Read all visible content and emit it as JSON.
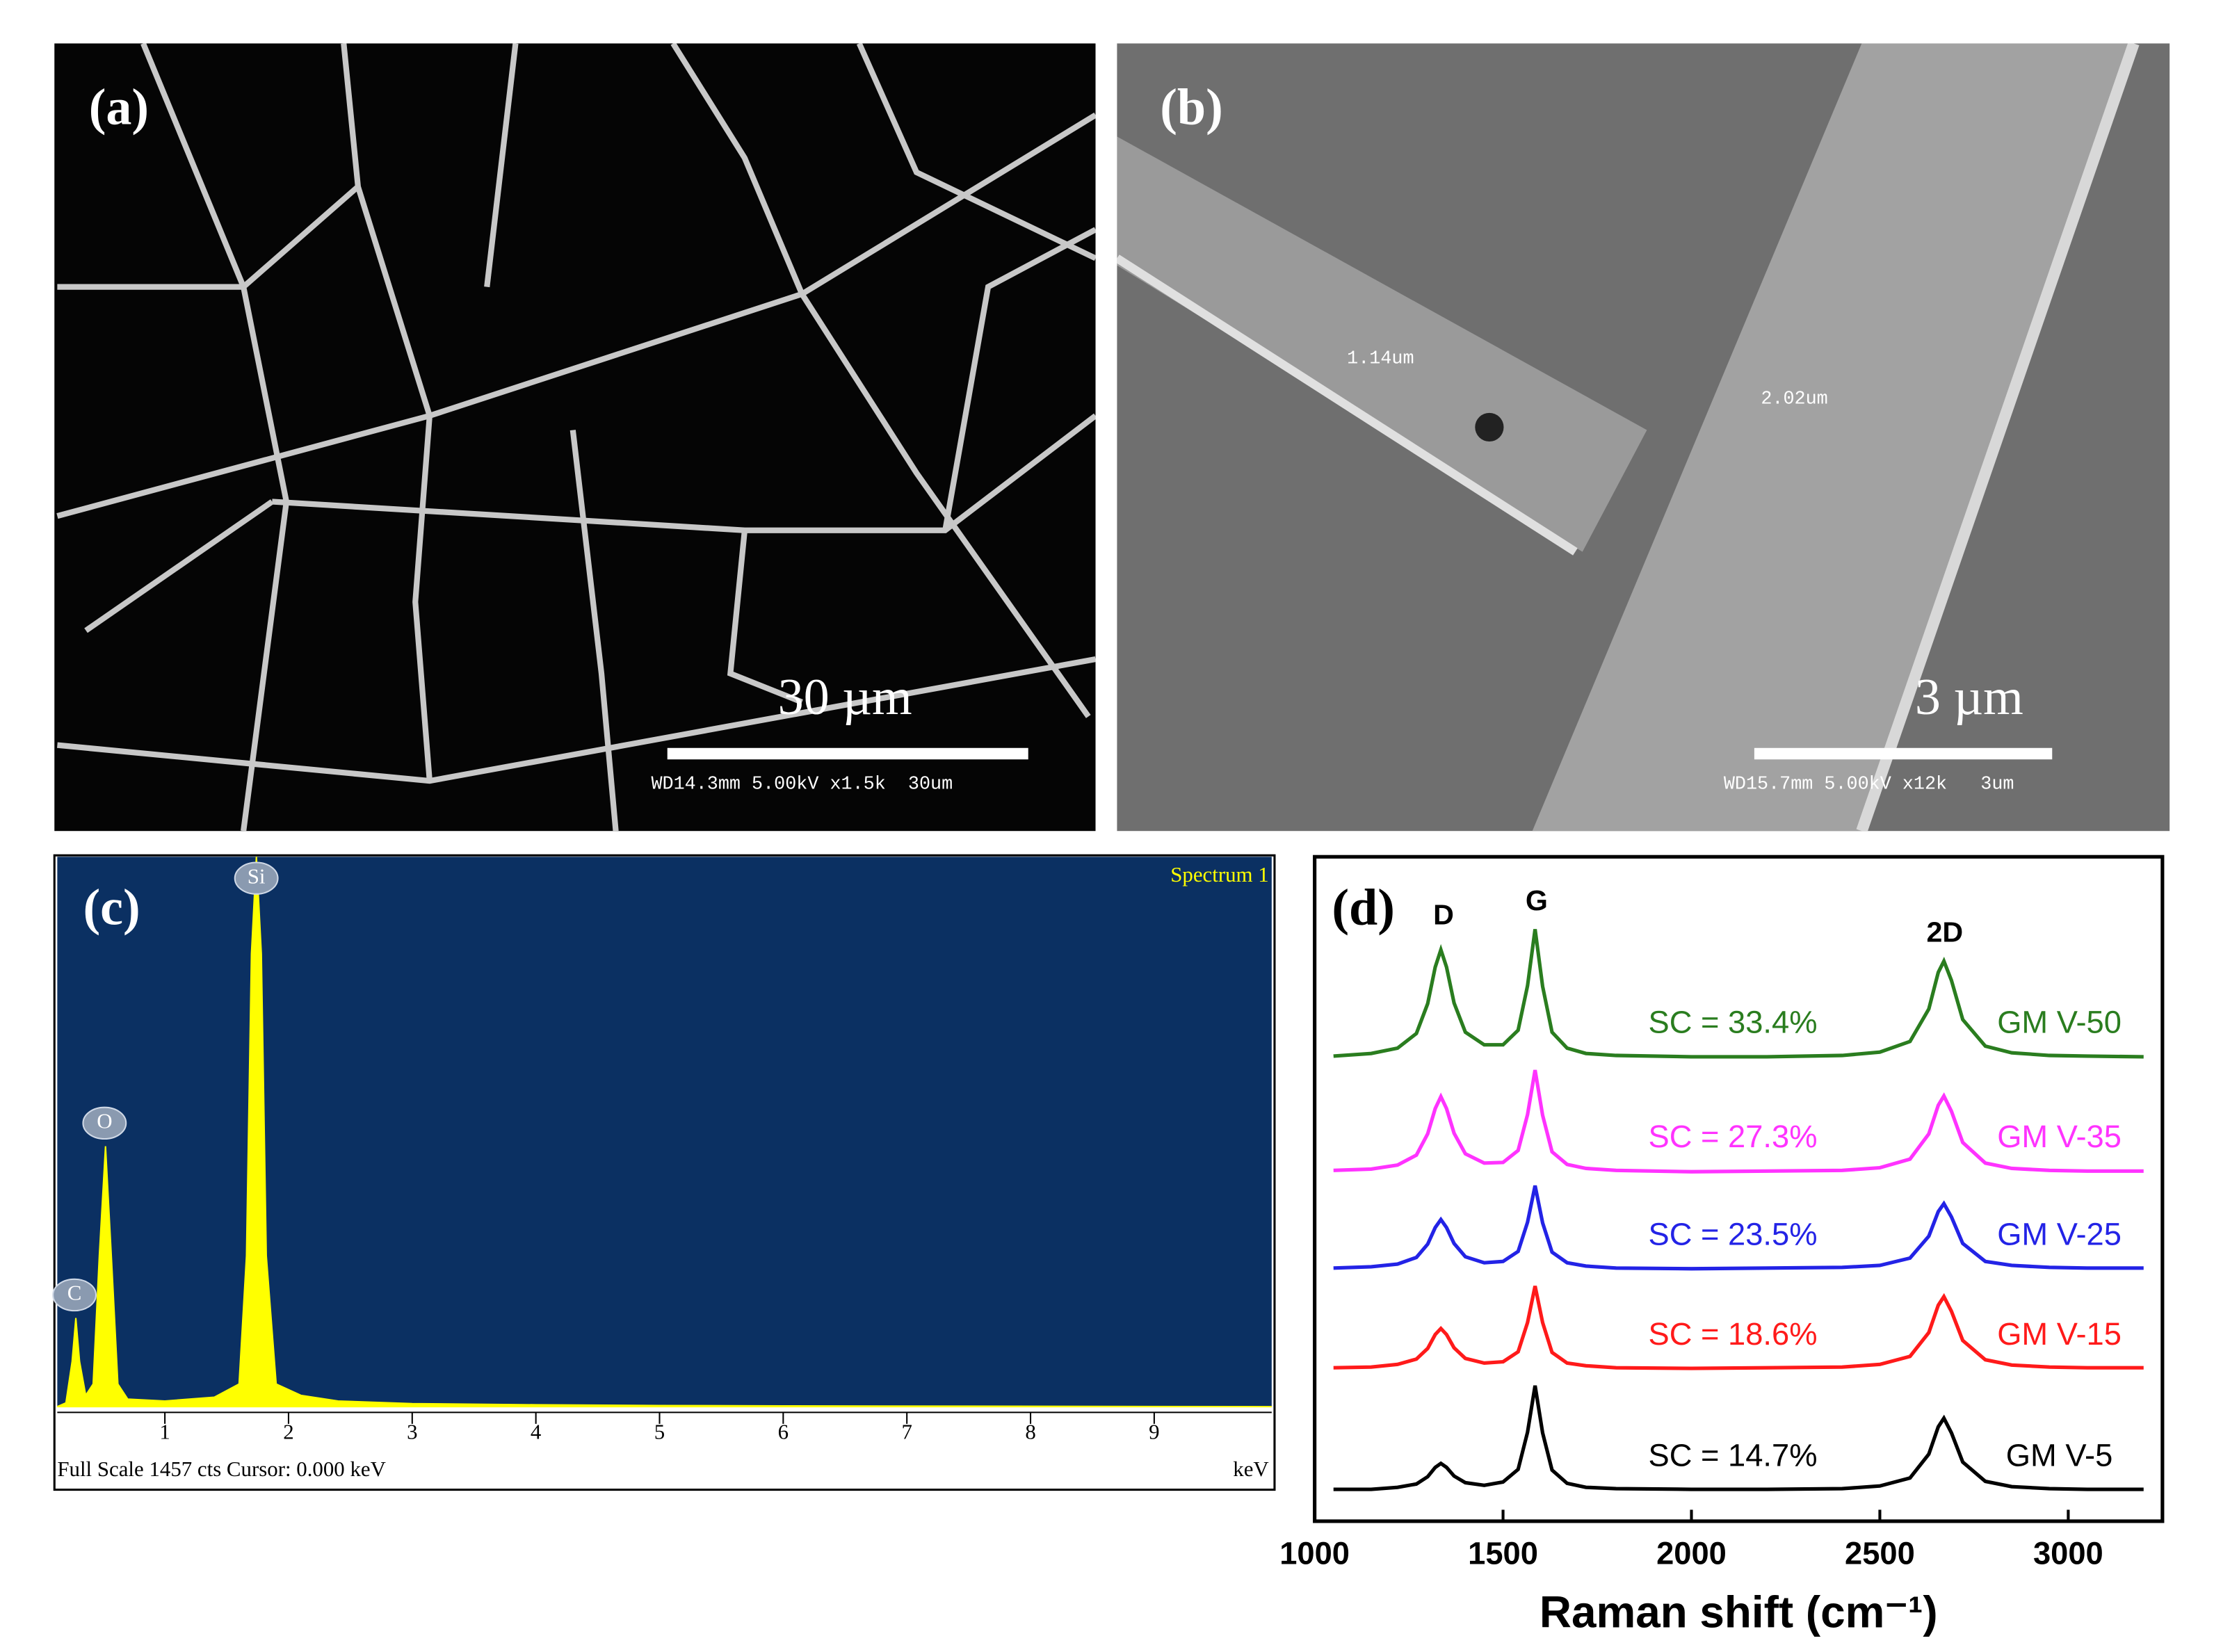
{
  "panels": {
    "a": {
      "label": "(a)",
      "scale_bar": "30 µm",
      "info": "WD14.3mm 5.00kV x1.5k  30um"
    },
    "b": {
      "label": "(b)",
      "scale_bar": "3 µm",
      "info": "WD15.7mm 5.00kV x12k   3um",
      "measurements": [
        "1.14um",
        "2.02um"
      ]
    }
  },
  "chart_data": [
    {
      "type": "area",
      "label": "(c)",
      "title": "Spectrum 1",
      "color": "#ffff00",
      "background": "#0b3062",
      "xlabel": "keV",
      "footer": "Full Scale 1457 cts  Cursor: 0.000 keV",
      "peak_labels": [
        "C",
        "O",
        "Si"
      ],
      "x": [
        0.13,
        0.2,
        0.25,
        0.28,
        0.31,
        0.36,
        0.42,
        0.47,
        0.52,
        0.57,
        0.62,
        0.7,
        1.0,
        1.4,
        1.6,
        1.66,
        1.7,
        1.74,
        1.78,
        1.82,
        1.9,
        2.1,
        2.4,
        3,
        4,
        5,
        6,
        9.95
      ],
      "values": [
        0,
        10,
        120,
        235,
        120,
        30,
        60,
        400,
        690,
        380,
        60,
        20,
        15,
        25,
        60,
        400,
        1200,
        1457,
        1200,
        400,
        60,
        30,
        15,
        8,
        5,
        3,
        2,
        0
      ],
      "xlim": [
        0.13,
        9.95
      ],
      "xticks": [
        1,
        2,
        3,
        4,
        5,
        6,
        7,
        8,
        9
      ],
      "ylim": [
        0,
        1457
      ]
    },
    {
      "type": "line",
      "label": "(d)",
      "xlabel": "Raman shift (cm⁻¹)",
      "peak_labels": [
        "D",
        "G",
        "2D"
      ],
      "x": [
        1050,
        1150,
        1220,
        1270,
        1300,
        1320,
        1335,
        1350,
        1370,
        1400,
        1450,
        1500,
        1540,
        1565,
        1585,
        1605,
        1630,
        1670,
        1720,
        1800,
        2000,
        2200,
        2400,
        2500,
        2580,
        2630,
        2655,
        2670,
        2690,
        2720,
        2780,
        2850,
        2950,
        3050,
        3200
      ],
      "series": [
        {
          "name": "GM V-50",
          "annotation": "SC = 33.4%",
          "color": "#2a7d1f",
          "values": [
            7.0,
            7.04,
            7.12,
            7.34,
            7.79,
            8.34,
            8.6,
            8.34,
            7.8,
            7.36,
            7.17,
            7.17,
            7.39,
            8.06,
            8.91,
            8.05,
            7.36,
            7.12,
            7.04,
            7.01,
            6.99,
            6.99,
            7.01,
            7.06,
            7.22,
            7.71,
            8.26,
            8.43,
            8.14,
            7.55,
            7.15,
            7.05,
            7.01,
            7.0,
            6.99
          ]
        },
        {
          "name": "GM V-35",
          "annotation": "SC = 27.3%",
          "color": "#ff33ff",
          "values": [
            5.28,
            5.3,
            5.36,
            5.51,
            5.83,
            6.21,
            6.39,
            6.21,
            5.84,
            5.53,
            5.39,
            5.4,
            5.58,
            6.12,
            6.79,
            6.11,
            5.56,
            5.37,
            5.31,
            5.28,
            5.26,
            5.27,
            5.28,
            5.32,
            5.45,
            5.83,
            6.26,
            6.4,
            6.17,
            5.7,
            5.39,
            5.31,
            5.28,
            5.27,
            5.27
          ]
        },
        {
          "name": "GM V-25",
          "annotation": "SC = 23.5%",
          "color": "#2323e6",
          "values": [
            3.81,
            3.83,
            3.87,
            3.97,
            4.17,
            4.42,
            4.54,
            4.42,
            4.18,
            3.98,
            3.89,
            3.91,
            4.06,
            4.5,
            5.05,
            4.49,
            4.05,
            3.89,
            3.84,
            3.81,
            3.8,
            3.81,
            3.82,
            3.85,
            3.96,
            4.29,
            4.66,
            4.78,
            4.58,
            4.18,
            3.91,
            3.85,
            3.82,
            3.81,
            3.81
          ]
        },
        {
          "name": "GM V-15",
          "annotation": "SC = 18.6%",
          "color": "#ff1a1a",
          "values": [
            2.31,
            2.32,
            2.36,
            2.44,
            2.6,
            2.81,
            2.9,
            2.81,
            2.61,
            2.45,
            2.38,
            2.4,
            2.55,
            2.99,
            3.54,
            2.99,
            2.54,
            2.38,
            2.34,
            2.31,
            2.3,
            2.31,
            2.32,
            2.36,
            2.48,
            2.84,
            3.25,
            3.38,
            3.16,
            2.72,
            2.43,
            2.35,
            2.32,
            2.31,
            2.31
          ]
        },
        {
          "name": "GM V-5",
          "annotation": "SC = 14.7%",
          "color": "#000000",
          "values": [
            0.48,
            0.48,
            0.51,
            0.56,
            0.67,
            0.81,
            0.87,
            0.81,
            0.68,
            0.58,
            0.54,
            0.59,
            0.78,
            1.34,
            2.04,
            1.33,
            0.77,
            0.57,
            0.51,
            0.49,
            0.48,
            0.48,
            0.49,
            0.53,
            0.65,
            1.01,
            1.42,
            1.55,
            1.33,
            0.89,
            0.6,
            0.52,
            0.49,
            0.48,
            0.48
          ]
        }
      ],
      "xlim": [
        1000,
        3250
      ],
      "xticks": [
        1000,
        1500,
        2000,
        2500,
        3000
      ],
      "ylim": [
        0,
        10
      ]
    }
  ]
}
